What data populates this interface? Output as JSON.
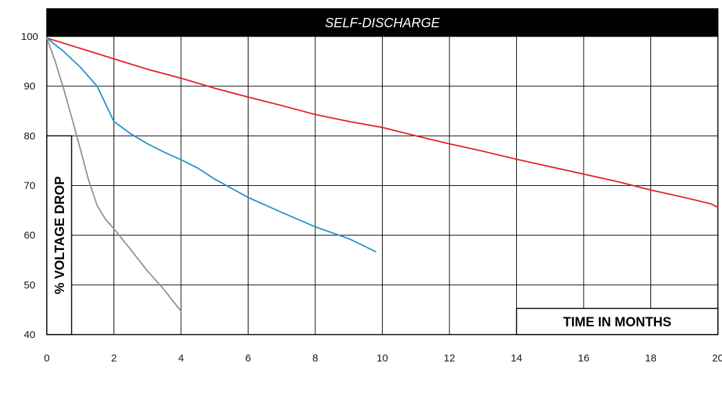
{
  "chart_data": {
    "type": "line",
    "title": "SELF-DISCHARGE",
    "xlabel": "TIME IN MONTHS",
    "ylabel": "% VOLTAGE DROP",
    "xlim": [
      0,
      20
    ],
    "ylim": [
      40,
      100
    ],
    "x_ticks": [
      0,
      2,
      4,
      6,
      8,
      10,
      12,
      14,
      16,
      18,
      20
    ],
    "y_ticks": [
      40,
      50,
      60,
      70,
      80,
      90,
      100
    ],
    "x_tick_labels": [
      "0",
      "2",
      "4",
      "6",
      "8",
      "10",
      "12",
      "14",
      "16",
      "18",
      "20"
    ],
    "y_tick_labels": [
      "40",
      "50",
      "60",
      "70",
      "80",
      "90",
      "100"
    ],
    "grid": true,
    "legend": "none",
    "series": [
      {
        "color": "#e3242b",
        "points": [
          [
            0,
            99.7
          ],
          [
            1,
            97.6
          ],
          [
            2,
            95.5
          ],
          [
            3,
            93.4
          ],
          [
            4,
            91.6
          ],
          [
            5,
            89.6
          ],
          [
            6,
            87.8
          ],
          [
            7,
            86.1
          ],
          [
            8,
            84.3
          ],
          [
            9,
            82.9
          ],
          [
            10,
            81.7
          ],
          [
            11,
            80.0
          ],
          [
            12,
            78.4
          ],
          [
            13,
            76.9
          ],
          [
            14,
            75.3
          ],
          [
            15,
            73.8
          ],
          [
            16,
            72.3
          ],
          [
            17,
            70.8
          ],
          [
            18,
            69.1
          ],
          [
            19,
            67.6
          ],
          [
            19.8,
            66.3
          ],
          [
            20,
            65.6
          ]
        ]
      },
      {
        "color": "#2a93c8",
        "points": [
          [
            0,
            99.7
          ],
          [
            0.5,
            97.0
          ],
          [
            1,
            93.8
          ],
          [
            1.5,
            90.0
          ],
          [
            2,
            82.9
          ],
          [
            2.5,
            80.4
          ],
          [
            3,
            78.4
          ],
          [
            3.5,
            76.7
          ],
          [
            4,
            75.2
          ],
          [
            4.5,
            73.5
          ],
          [
            5,
            71.3
          ],
          [
            6,
            67.6
          ],
          [
            7,
            64.6
          ],
          [
            8,
            61.7
          ],
          [
            9,
            59.3
          ],
          [
            9.8,
            56.7
          ]
        ]
      },
      {
        "color": "#939393",
        "points": [
          [
            0,
            99.7
          ],
          [
            0.25,
            95.0
          ],
          [
            0.5,
            89.5
          ],
          [
            0.75,
            83.5
          ],
          [
            1,
            77.3
          ],
          [
            1.25,
            71.0
          ],
          [
            1.5,
            66.0
          ],
          [
            1.75,
            63.2
          ],
          [
            2,
            61.3
          ],
          [
            2.5,
            57.1
          ],
          [
            3,
            52.8
          ],
          [
            3.5,
            49.0
          ],
          [
            4,
            44.7
          ]
        ]
      }
    ]
  }
}
